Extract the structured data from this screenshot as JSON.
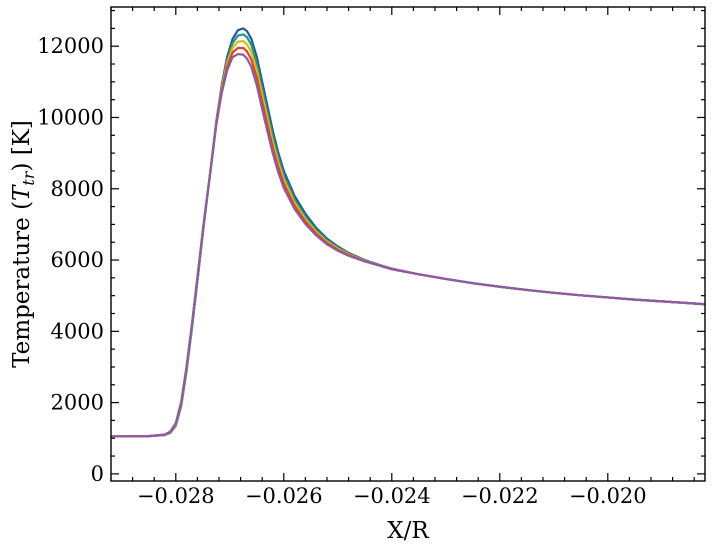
{
  "chart_data": {
    "type": "line",
    "title": "",
    "xlabel": "X/R",
    "ylabel": "Temperature (T_tr) [K]",
    "ylabel_parts": {
      "pre": "Temperature (",
      "var": "T",
      "sub": "tr",
      "post": ") [K]"
    },
    "xlim": [
      -0.0292,
      -0.0182
    ],
    "ylim": [
      -200,
      13100
    ],
    "xticks": [
      -0.028,
      -0.026,
      -0.024,
      -0.022,
      -0.02
    ],
    "xtick_labels": [
      "−0.028",
      "−0.026",
      "−0.024",
      "−0.022",
      "−0.020"
    ],
    "yticks": [
      0,
      2000,
      4000,
      6000,
      8000,
      10000,
      12000
    ],
    "ytick_labels": [
      "0",
      "2000",
      "4000",
      "6000",
      "8000",
      "10000",
      "12000"
    ],
    "grid": false,
    "legend": "none",
    "series": [
      {
        "color": "#1f5aa0",
        "x": [
          -0.0292,
          -0.0285,
          -0.0282,
          -0.0281,
          -0.028,
          -0.0279,
          -0.0278,
          -0.0277,
          -0.0276,
          -0.02748,
          -0.02735,
          -0.02725,
          -0.02715,
          -0.02705,
          -0.02695,
          -0.02685,
          -0.02675,
          -0.02668,
          -0.0266,
          -0.0265,
          -0.0264,
          -0.0263,
          -0.0262,
          -0.0261,
          -0.026,
          -0.0258,
          -0.0256,
          -0.0254,
          -0.0252,
          -0.025,
          -0.0248,
          -0.0245,
          -0.0242,
          -0.024,
          -0.0235,
          -0.023,
          -0.0225,
          -0.022,
          -0.0215,
          -0.021,
          -0.0205,
          -0.02,
          -0.0195,
          -0.019,
          -0.0185,
          -0.0182
        ],
        "y": [
          1050,
          1060,
          1090,
          1150,
          1350,
          1900,
          2900,
          4100,
          5400,
          7000,
          8600,
          9900,
          10900,
          11700,
          12200,
          12450,
          12500,
          12420,
          12200,
          11700,
          11000,
          10300,
          9600,
          9000,
          8500,
          7800,
          7300,
          6900,
          6600,
          6380,
          6200,
          6000,
          5850,
          5760,
          5600,
          5470,
          5350,
          5250,
          5160,
          5080,
          5010,
          4950,
          4890,
          4840,
          4790,
          4760
        ]
      },
      {
        "color": "#1e9a8a",
        "x": [
          -0.0292,
          -0.0285,
          -0.0282,
          -0.0281,
          -0.028,
          -0.0279,
          -0.0278,
          -0.0277,
          -0.0276,
          -0.02748,
          -0.02735,
          -0.02725,
          -0.02715,
          -0.02705,
          -0.02695,
          -0.02685,
          -0.02675,
          -0.02668,
          -0.0266,
          -0.0265,
          -0.0264,
          -0.0263,
          -0.0262,
          -0.0261,
          -0.026,
          -0.0258,
          -0.0256,
          -0.0254,
          -0.0252,
          -0.025,
          -0.0248,
          -0.0245,
          -0.0242,
          -0.024,
          -0.0235,
          -0.023,
          -0.0225,
          -0.022,
          -0.0215,
          -0.021,
          -0.0205,
          -0.02,
          -0.0195,
          -0.019,
          -0.0185,
          -0.0182
        ],
        "y": [
          1050,
          1060,
          1090,
          1160,
          1370,
          1930,
          2930,
          4130,
          5430,
          7020,
          8600,
          9880,
          10850,
          11620,
          12080,
          12300,
          12330,
          12250,
          12030,
          11520,
          10820,
          10130,
          9450,
          8870,
          8380,
          7700,
          7220,
          6840,
          6560,
          6350,
          6180,
          5990,
          5845,
          5755,
          5600,
          5470,
          5350,
          5250,
          5160,
          5080,
          5010,
          4950,
          4890,
          4840,
          4790,
          4760
        ]
      },
      {
        "color": "#e6b800",
        "x": [
          -0.0292,
          -0.0285,
          -0.0282,
          -0.0281,
          -0.028,
          -0.0279,
          -0.0278,
          -0.0277,
          -0.0276,
          -0.02748,
          -0.02735,
          -0.02725,
          -0.02715,
          -0.02705,
          -0.02695,
          -0.02685,
          -0.02675,
          -0.02668,
          -0.0266,
          -0.0265,
          -0.0264,
          -0.0263,
          -0.0262,
          -0.0261,
          -0.026,
          -0.0258,
          -0.0256,
          -0.0254,
          -0.0252,
          -0.025,
          -0.0248,
          -0.0245,
          -0.0242,
          -0.024,
          -0.0235,
          -0.023,
          -0.0225,
          -0.022,
          -0.0215,
          -0.021,
          -0.0205,
          -0.02,
          -0.0195,
          -0.019,
          -0.0185,
          -0.0182
        ],
        "y": [
          1050,
          1060,
          1095,
          1170,
          1390,
          1960,
          2960,
          4160,
          5460,
          7040,
          8600,
          9850,
          10800,
          11520,
          11950,
          12130,
          12140,
          12050,
          11830,
          11320,
          10630,
          9950,
          9290,
          8730,
          8260,
          7610,
          7150,
          6790,
          6520,
          6320,
          6160,
          5980,
          5840,
          5750,
          5600,
          5470,
          5350,
          5250,
          5160,
          5080,
          5010,
          4950,
          4890,
          4840,
          4790,
          4760
        ]
      },
      {
        "color": "#e8412a",
        "x": [
          -0.0292,
          -0.0285,
          -0.0282,
          -0.0281,
          -0.028,
          -0.0279,
          -0.0278,
          -0.0277,
          -0.0276,
          -0.02748,
          -0.02735,
          -0.02725,
          -0.02715,
          -0.02705,
          -0.02695,
          -0.02685,
          -0.02675,
          -0.02668,
          -0.0266,
          -0.0265,
          -0.0264,
          -0.0263,
          -0.0262,
          -0.0261,
          -0.026,
          -0.0258,
          -0.0256,
          -0.0254,
          -0.0252,
          -0.025,
          -0.0248,
          -0.0245,
          -0.0242,
          -0.024,
          -0.0235,
          -0.023,
          -0.0225,
          -0.022,
          -0.0215,
          -0.021,
          -0.0205,
          -0.02,
          -0.0195,
          -0.019,
          -0.0185,
          -0.0182
        ],
        "y": [
          1050,
          1060,
          1100,
          1180,
          1410,
          1990,
          2990,
          4190,
          5490,
          7060,
          8600,
          9820,
          10740,
          11420,
          11820,
          11950,
          11950,
          11850,
          11620,
          11110,
          10430,
          9770,
          9130,
          8590,
          8140,
          7520,
          7080,
          6740,
          6480,
          6290,
          6140,
          5970,
          5835,
          5745,
          5600,
          5470,
          5350,
          5250,
          5160,
          5080,
          5010,
          4950,
          4890,
          4840,
          4790,
          4760
        ]
      },
      {
        "color": "#8a5ca8",
        "x": [
          -0.0292,
          -0.0285,
          -0.0282,
          -0.0281,
          -0.028,
          -0.0279,
          -0.0278,
          -0.0277,
          -0.0276,
          -0.02748,
          -0.02735,
          -0.02725,
          -0.02715,
          -0.02705,
          -0.02695,
          -0.02685,
          -0.02675,
          -0.02668,
          -0.0266,
          -0.0265,
          -0.0264,
          -0.0263,
          -0.0262,
          -0.0261,
          -0.026,
          -0.0258,
          -0.0256,
          -0.0254,
          -0.0252,
          -0.025,
          -0.0248,
          -0.0245,
          -0.0242,
          -0.024,
          -0.0235,
          -0.023,
          -0.0225,
          -0.022,
          -0.0215,
          -0.021,
          -0.0205,
          -0.02,
          -0.0195,
          -0.019,
          -0.0185,
          -0.0182
        ],
        "y": [
          1050,
          1060,
          1105,
          1190,
          1430,
          2020,
          3020,
          4220,
          5520,
          7080,
          8600,
          9790,
          10680,
          11320,
          11690,
          11780,
          11760,
          11650,
          11410,
          10900,
          10230,
          9590,
          8970,
          8450,
          8020,
          7430,
          7010,
          6690,
          6440,
          6260,
          6120,
          5960,
          5830,
          5740,
          5600,
          5470,
          5350,
          5250,
          5160,
          5080,
          5010,
          4950,
          4890,
          4840,
          4790,
          4760
        ]
      }
    ]
  }
}
